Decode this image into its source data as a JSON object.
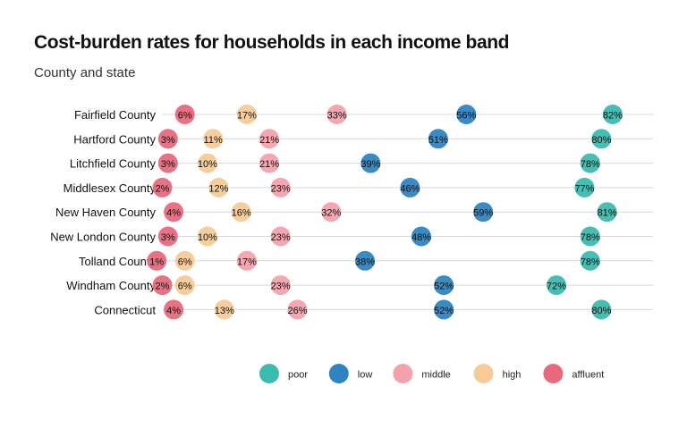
{
  "chart_data": {
    "type": "scatter",
    "title": "Cost-burden rates for households in each income band",
    "subtitle": "County and state",
    "xlabel": "",
    "ylabel": "",
    "xlim": [
      0,
      90
    ],
    "grid": true,
    "legend_position": "bottom",
    "value_format": "percent",
    "categories": [
      "Fairfield County",
      "Hartford County",
      "Litchfield County",
      "Middlesex County",
      "New Haven County",
      "New London County",
      "Tolland County",
      "Windham County",
      "Connecticut"
    ],
    "series": [
      {
        "name": "poor",
        "color": "#3dbaae",
        "values": [
          82,
          80,
          78,
          77,
          81,
          78,
          78,
          72,
          80
        ]
      },
      {
        "name": "low",
        "color": "#2f84c0",
        "values": [
          56,
          51,
          39,
          46,
          59,
          48,
          38,
          52,
          52
        ]
      },
      {
        "name": "middle",
        "color": "#f3a2ad",
        "values": [
          33,
          21,
          21,
          23,
          32,
          23,
          17,
          23,
          26
        ]
      },
      {
        "name": "high",
        "color": "#f6cb99",
        "values": [
          17,
          11,
          10,
          12,
          16,
          10,
          6,
          6,
          13
        ]
      },
      {
        "name": "affluent",
        "color": "#e76a7c",
        "values": [
          6,
          3,
          3,
          2,
          4,
          3,
          1,
          2,
          4
        ]
      }
    ]
  }
}
